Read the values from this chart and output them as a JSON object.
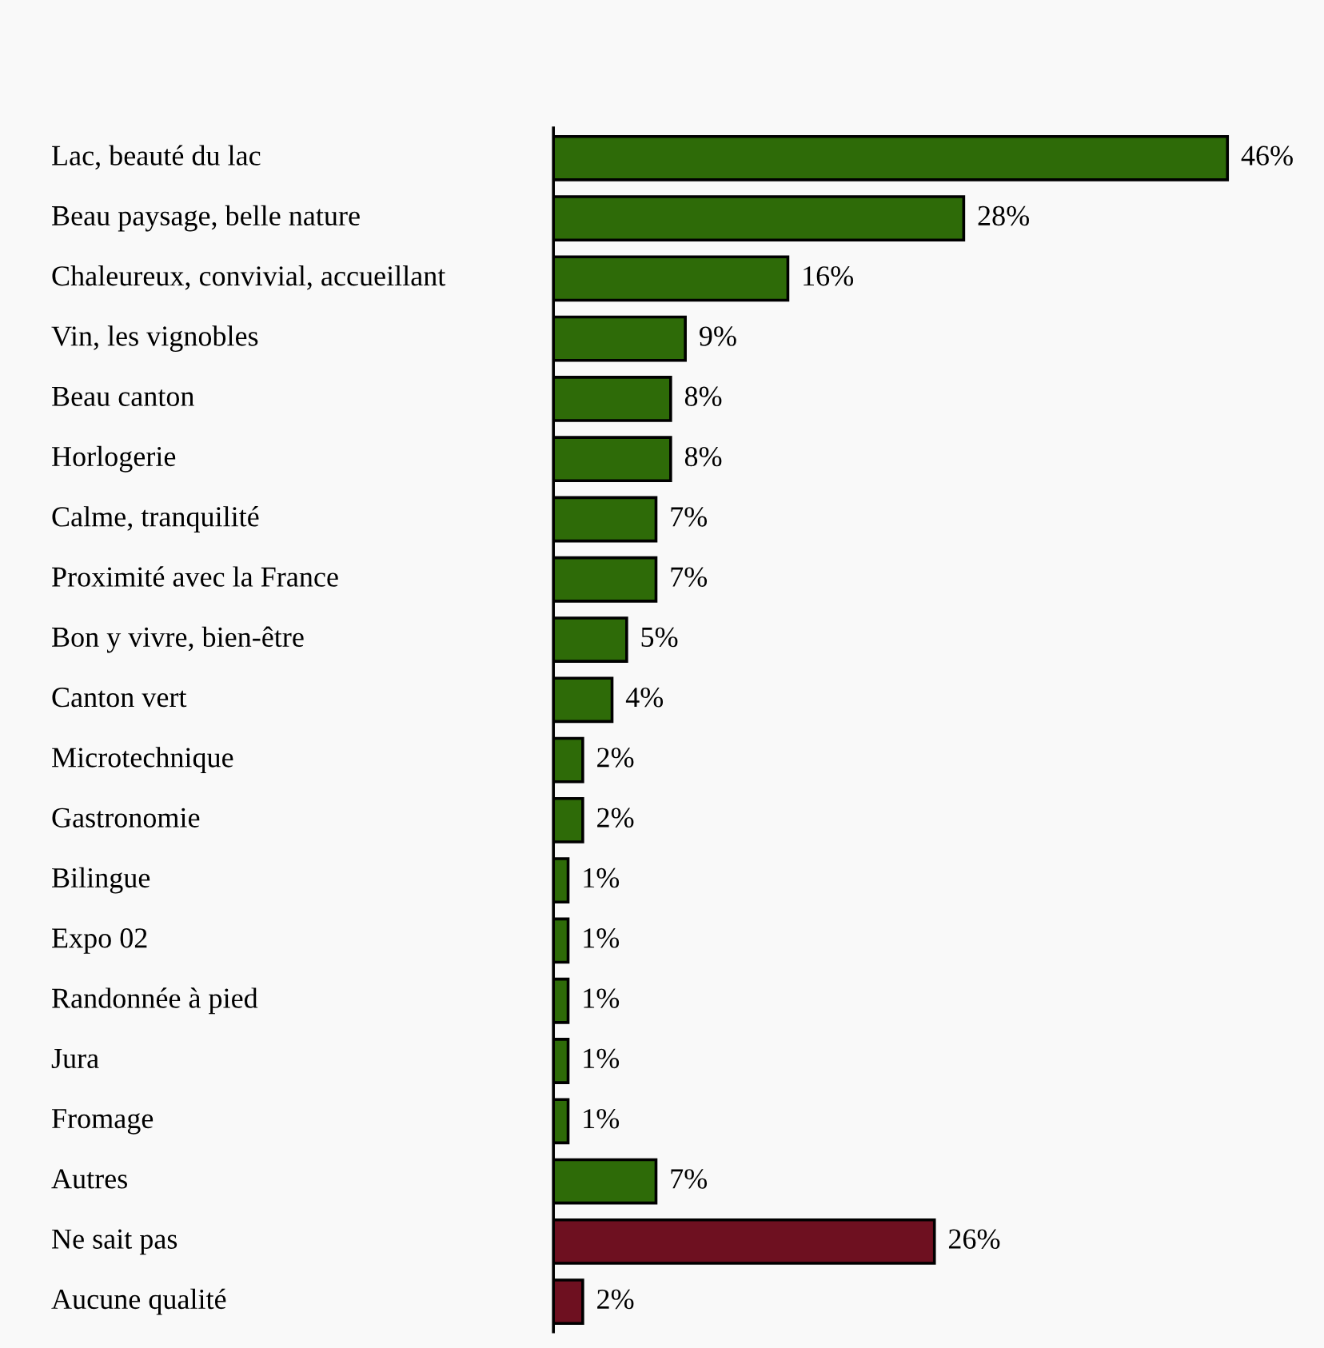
{
  "chart_data": {
    "type": "bar",
    "orientation": "horizontal",
    "data_labels": true,
    "categories": [
      "Lac, beauté du lac",
      "Beau paysage, belle nature",
      "Chaleureux, convivial, accueillant",
      "Vin, les vignobles",
      "Beau canton",
      "Horlogerie",
      "Calme, tranquilité",
      "Proximité avec la France",
      "Bon y vivre, bien-être",
      "Canton vert",
      "Microtechnique",
      "Gastronomie",
      "Bilingue",
      "Expo 02",
      "Randonnée à pied",
      "Jura",
      "Fromage",
      "Autres",
      "Ne sait pas",
      "Aucune qualité"
    ],
    "values": [
      46,
      28,
      16,
      9,
      8,
      8,
      7,
      7,
      5,
      4,
      2,
      2,
      1,
      1,
      1,
      1,
      1,
      7,
      26,
      2
    ],
    "value_labels": [
      "46%",
      "28%",
      "16%",
      "9%",
      "8%",
      "8%",
      "7%",
      "7%",
      "5%",
      "4%",
      "2%",
      "2%",
      "1%",
      "1%",
      "1%",
      "1%",
      "1%",
      "7%",
      "26%",
      "2%"
    ],
    "colors": [
      "#2e6b08",
      "#2e6b08",
      "#2e6b08",
      "#2e6b08",
      "#2e6b08",
      "#2e6b08",
      "#2e6b08",
      "#2e6b08",
      "#2e6b08",
      "#2e6b08",
      "#2e6b08",
      "#2e6b08",
      "#2e6b08",
      "#2e6b08",
      "#2e6b08",
      "#2e6b08",
      "#2e6b08",
      "#2e6b08",
      "#6e1020",
      "#6e1020"
    ]
  }
}
